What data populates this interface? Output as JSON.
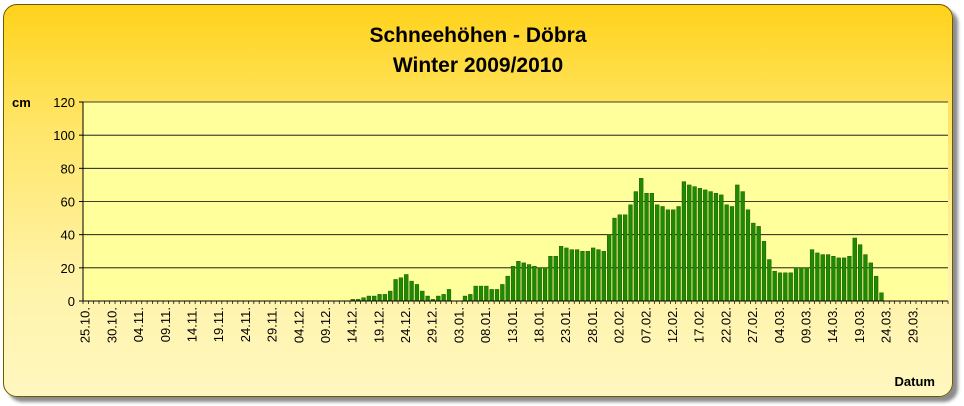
{
  "chart_data": {
    "type": "bar",
    "title": "Schneehöhen - Döbra",
    "subtitle": "Winter 2009/2010",
    "ylabel": "cm",
    "xlabel": "Datum",
    "ylim": [
      0,
      120
    ],
    "yticks": [
      0,
      20,
      40,
      60,
      80,
      100,
      120
    ],
    "grid": true,
    "legend": "none",
    "colors": {
      "bar": "#1f8a00",
      "bar_edge": "#0c4a00",
      "plot_bg": "#ffff9c"
    },
    "x_tick_labels": [
      "25.10.",
      "30.10.",
      "04.11.",
      "09.11.",
      "14.11.",
      "19.11.",
      "24.11.",
      "29.11.",
      "04.12.",
      "09.12.",
      "14.12.",
      "19.12.",
      "24.12.",
      "29.12.",
      "03.01.",
      "08.01.",
      "13.01.",
      "18.01.",
      "23.01.",
      "28.01.",
      "02.02.",
      "07.02.",
      "12.02.",
      "17.02.",
      "22.02.",
      "27.02.",
      "04.03.",
      "09.03.",
      "14.03.",
      "19.03.",
      "24.03.",
      "29.03."
    ],
    "x_start_label": "25.10.",
    "values": [
      0,
      0,
      0,
      0,
      0,
      0,
      0,
      0,
      0,
      0,
      0,
      0,
      0,
      0,
      0,
      0,
      0,
      0,
      0,
      0,
      0,
      0,
      0,
      0,
      0,
      0,
      0,
      0,
      0,
      0,
      0,
      0,
      0,
      0,
      0,
      0,
      0,
      0,
      0,
      0,
      0,
      0,
      0,
      0,
      0,
      0,
      0,
      0,
      0,
      0,
      1,
      1,
      2,
      3,
      3,
      4,
      4,
      6,
      13,
      14,
      16,
      12,
      10,
      6,
      3,
      1,
      3,
      4,
      7,
      0,
      0,
      3,
      4,
      9,
      9,
      9,
      7,
      7,
      10,
      15,
      21,
      24,
      23,
      22,
      21,
      20,
      20,
      27,
      27,
      33,
      32,
      31,
      31,
      30,
      30,
      32,
      31,
      30,
      40,
      50,
      52,
      52,
      58,
      66,
      74,
      65,
      65,
      58,
      57,
      55,
      55,
      57,
      72,
      70,
      69,
      68,
      67,
      66,
      65,
      64,
      58,
      57,
      70,
      66,
      55,
      47,
      45,
      36,
      25,
      18,
      17,
      17,
      17,
      20,
      20,
      20,
      31,
      29,
      28,
      28,
      27,
      26,
      26,
      27,
      38,
      34,
      28,
      23,
      15,
      5,
      0,
      0,
      0,
      0,
      0,
      0,
      0,
      0,
      0,
      0,
      0,
      0
    ]
  }
}
